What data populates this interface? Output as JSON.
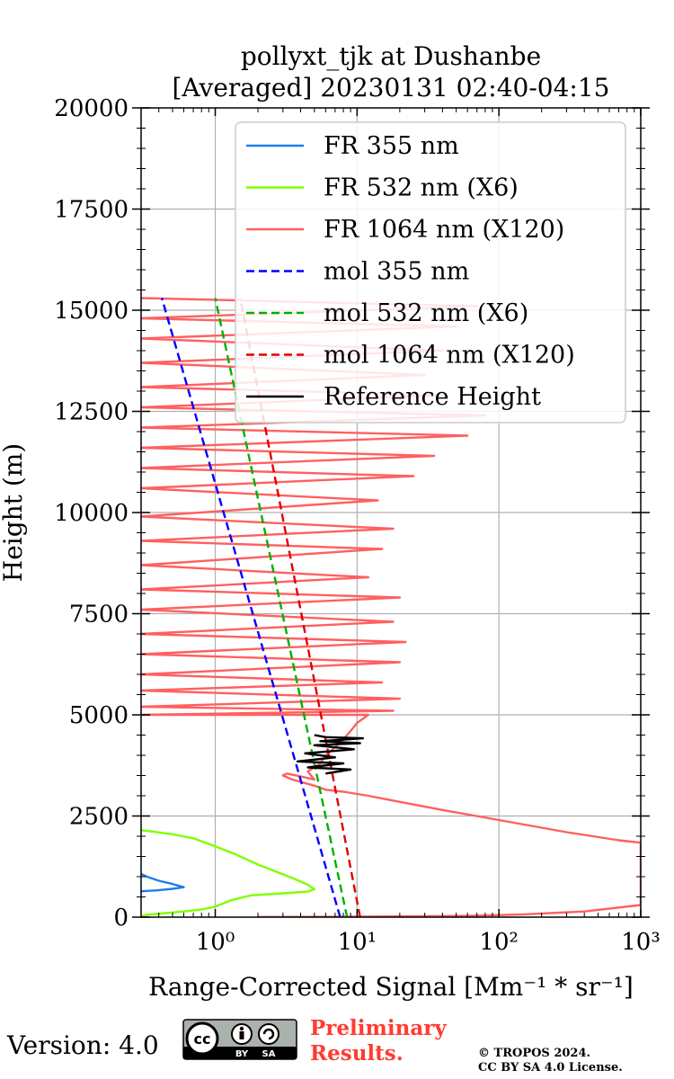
{
  "chart_data": {
    "type": "line",
    "title_line1": "pollyxt_tjk at Dushanbe",
    "title_line2": "[Averaged] 20230131 02:40-04:15",
    "xlabel": "Range-Corrected Signal [Mm⁻¹ * sr⁻¹]",
    "ylabel": "Height (m)",
    "xscale": "log",
    "xlim": [
      0.3,
      1000
    ],
    "ylim": [
      0,
      20000
    ],
    "xticks": [
      {
        "value": 1,
        "label": "10⁰"
      },
      {
        "value": 10,
        "label": "10¹"
      },
      {
        "value": 100,
        "label": "10²"
      },
      {
        "value": 1000,
        "label": "10³"
      }
    ],
    "yticks": [
      {
        "value": 0,
        "label": "0"
      },
      {
        "value": 2500,
        "label": "2500"
      },
      {
        "value": 5000,
        "label": "5000"
      },
      {
        "value": 7500,
        "label": "7500"
      },
      {
        "value": 10000,
        "label": "10000"
      },
      {
        "value": 12500,
        "label": "12500"
      },
      {
        "value": 15000,
        "label": "15000"
      },
      {
        "value": 17500,
        "label": "17500"
      },
      {
        "value": 20000,
        "label": "20000"
      }
    ],
    "grid": true,
    "legend_position": "top-right",
    "series": [
      {
        "name": "FR 355 nm",
        "color": "#1f7de8",
        "style": "solid",
        "points": [
          [
            0.3,
            640
          ],
          [
            0.38,
            660
          ],
          [
            0.5,
            700
          ],
          [
            0.6,
            740
          ],
          [
            0.5,
            820
          ],
          [
            0.4,
            900
          ],
          [
            0.33,
            1000
          ],
          [
            0.3,
            1070
          ]
        ]
      },
      {
        "name": "FR 532 nm (X6)",
        "color": "#7fff00",
        "style": "solid",
        "points": [
          [
            0.3,
            20
          ],
          [
            0.33,
            60
          ],
          [
            0.45,
            100
          ],
          [
            0.6,
            140
          ],
          [
            0.8,
            190
          ],
          [
            1.0,
            260
          ],
          [
            1.3,
            420
          ],
          [
            1.8,
            540
          ],
          [
            3.0,
            590
          ],
          [
            4.5,
            630
          ],
          [
            5.0,
            690
          ],
          [
            4.5,
            800
          ],
          [
            3.6,
            950
          ],
          [
            2.8,
            1100
          ],
          [
            2.0,
            1300
          ],
          [
            1.4,
            1550
          ],
          [
            1.0,
            1750
          ],
          [
            0.7,
            1950
          ],
          [
            0.5,
            2050
          ],
          [
            0.35,
            2120
          ],
          [
            0.3,
            2150
          ]
        ]
      },
      {
        "name": "FR 1064 nm (X120)",
        "color": "#ff6060",
        "style": "solid",
        "points": [
          [
            2.0,
            5
          ],
          [
            10,
            10
          ],
          [
            60,
            30
          ],
          [
            150,
            70
          ],
          [
            400,
            140
          ],
          [
            1000,
            300
          ],
          [
            1000,
            1840
          ],
          [
            700,
            1900
          ],
          [
            300,
            2100
          ],
          [
            100,
            2400
          ],
          [
            40,
            2650
          ],
          [
            20,
            2850
          ],
          [
            12,
            3000
          ],
          [
            8,
            3100
          ],
          [
            6,
            3150
          ],
          [
            5,
            3250
          ],
          [
            3.5,
            3400
          ],
          [
            3.0,
            3500
          ],
          [
            3.2,
            3550
          ],
          [
            4,
            3480
          ],
          [
            5,
            3400
          ],
          [
            4.5,
            3600
          ],
          [
            5.5,
            3800
          ],
          [
            6,
            4000
          ],
          [
            7,
            4200
          ],
          [
            8,
            4400
          ],
          [
            9,
            4600
          ],
          [
            10,
            4800
          ],
          [
            12,
            5000
          ],
          [
            0.3,
            5000
          ],
          [
            18,
            5100
          ],
          [
            0.3,
            5200
          ],
          [
            20,
            5400
          ],
          [
            0.3,
            5600
          ],
          [
            15,
            5800
          ],
          [
            0.3,
            6000
          ],
          [
            20,
            6300
          ],
          [
            0.3,
            6500
          ],
          [
            22,
            6800
          ],
          [
            0.3,
            7000
          ],
          [
            18,
            7300
          ],
          [
            0.3,
            7600
          ],
          [
            20,
            7900
          ],
          [
            0.3,
            8100
          ],
          [
            12,
            8400
          ],
          [
            0.3,
            8700
          ],
          [
            15,
            9100
          ],
          [
            0.3,
            9300
          ],
          [
            18,
            9600
          ],
          [
            0.3,
            9900
          ],
          [
            14,
            10300
          ],
          [
            0.3,
            10600
          ],
          [
            25,
            10900
          ],
          [
            0.3,
            11100
          ],
          [
            35,
            11400
          ],
          [
            0.3,
            11600
          ],
          [
            60,
            11900
          ],
          [
            0.3,
            12100
          ],
          [
            80,
            12400
          ],
          [
            0.3,
            12600
          ],
          [
            40,
            12900
          ],
          [
            0.3,
            13100
          ],
          [
            30,
            13400
          ],
          [
            0.3,
            13700
          ],
          [
            40,
            14000
          ],
          [
            0.3,
            14300
          ],
          [
            50,
            14600
          ],
          [
            0.3,
            14800
          ],
          [
            70,
            15100
          ],
          [
            0.3,
            15300
          ]
        ]
      },
      {
        "name": "mol 355 nm",
        "color": "#0000ff",
        "style": "dashed",
        "points": [
          [
            7.6,
            0
          ],
          [
            0.42,
            15300
          ]
        ]
      },
      {
        "name": "mol 532 nm (X6)",
        "color": "#00b000",
        "style": "dashed",
        "points": [
          [
            8.5,
            0
          ],
          [
            1.0,
            15300
          ]
        ]
      },
      {
        "name": "mol 1064 nm (X120)",
        "color": "#e00000",
        "style": "dashed",
        "points": [
          [
            10.5,
            0
          ],
          [
            1.5,
            15300
          ]
        ]
      },
      {
        "name": "Reference Height",
        "color": "#000000",
        "style": "solid",
        "points": [
          [
            6.0,
            3550
          ],
          [
            9.0,
            3650
          ],
          [
            4.5,
            3700
          ],
          [
            8.0,
            3800
          ],
          [
            3.8,
            3850
          ],
          [
            7.0,
            3950
          ],
          [
            4.3,
            4050
          ],
          [
            9.5,
            4150
          ],
          [
            5.0,
            4250
          ],
          [
            10.5,
            4300
          ],
          [
            5.5,
            4350
          ],
          [
            11.0,
            4420
          ],
          [
            6.0,
            4450
          ],
          [
            5.0,
            4500
          ]
        ]
      }
    ]
  },
  "footer": {
    "version_label": "Version: 4.0",
    "preliminary_line1": "Preliminary",
    "preliminary_line2": "Results.",
    "copyright_line1": "© TROPOS 2024.",
    "copyright_line2": "CC BY SA 4.0 License.",
    "cc_text": "cc",
    "cc_by": "BY",
    "cc_sa": "SA"
  }
}
